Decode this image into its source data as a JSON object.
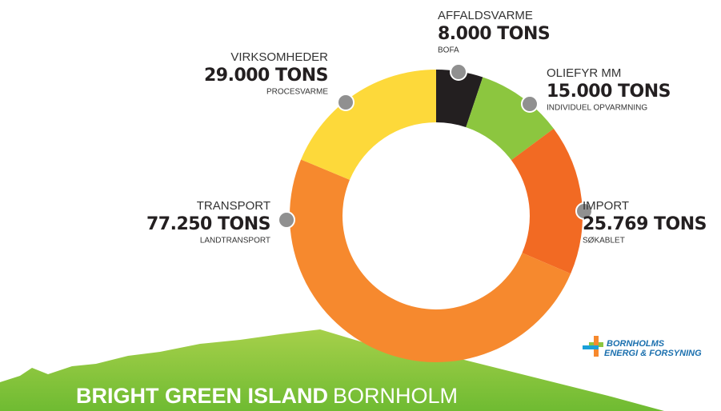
{
  "chart_data": {
    "type": "donut",
    "categories": [
      "AFFALDSVARME",
      "OLIEFYR MM",
      "IMPORT",
      "TRANSPORT",
      "VIRKSOMHEDER"
    ],
    "values": [
      8000,
      15000,
      25769,
      77250,
      29000
    ],
    "value_labels": [
      "8.000 TONS",
      "15.000 TONS",
      "25.769 TONS",
      "77.250 TONS",
      "29.000 TONS"
    ],
    "annotations": [
      "BOFA",
      "INDIVIDUEL OPVARMNING",
      "SØKABLET",
      "LANDTRANSPORT",
      "PROCESVARME"
    ],
    "colors": [
      "#231f20",
      "#8cc63f",
      "#f26a23",
      "#f6892e",
      "#fdd93a"
    ],
    "footer": {
      "bold": "BRIGHT GREEN ISLAND",
      "regular": "BORNHOLM"
    },
    "logo": {
      "line1": "BORNHOLMS",
      "line2": "ENERGI & FORSYNING"
    }
  }
}
